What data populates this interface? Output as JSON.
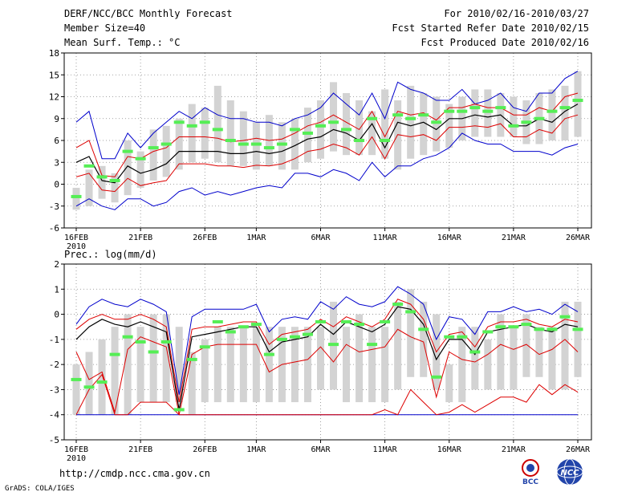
{
  "header": {
    "title": "DERF/NCC/BCC Monthly Forecast",
    "member_size": "Member Size=40",
    "variable1": "Mean Surf. Temp.: °C",
    "period": "For 2010/02/16-2010/03/27",
    "refer_date": "Fcst Started Refer Date 2010/02/15",
    "produced_date": "Fcst Produced Date 2010/02/16"
  },
  "footer": {
    "url": "http://cmdp.ncc.cma.gov.cn",
    "credit": "GrADS: COLA/IGES",
    "logo1_text": "BCC",
    "logo2_text": "NCC"
  },
  "colors": {
    "box": "#d3d3d3",
    "median": "#55ee55",
    "mean": "#000000",
    "inner": "#dd0000",
    "outer": "#0000cc",
    "grid": "#888888"
  },
  "chart_data": [
    {
      "type": "box-line",
      "title": "Mean Surf. Temp.: °C",
      "ylim": [
        -6,
        18
      ],
      "yticks": [
        -6,
        -3,
        0,
        3,
        6,
        9,
        12,
        15,
        18
      ],
      "xtick_labels": [
        "16FEB",
        "21FEB",
        "26FEB",
        "1MAR",
        "6MAR",
        "11MAR",
        "16MAR",
        "21MAR",
        "26MAR"
      ],
      "xtick_days": [
        0,
        5,
        10,
        14,
        19,
        24,
        29,
        34,
        39
      ],
      "year_label": "2010",
      "days": 40,
      "box_low": [
        -3.5,
        -3.0,
        -2.0,
        -2.5,
        -1.5,
        -0.5,
        0.5,
        1.0,
        2.0,
        3.0,
        3.5,
        3.0,
        2.5,
        2.5,
        2.0,
        2.5,
        2.0,
        2.0,
        3.0,
        3.5,
        4.5,
        4.0,
        4.0,
        4.0,
        3.5,
        2.0,
        3.5,
        4.0,
        4.5,
        5.0,
        6.0,
        6.5,
        6.5,
        6.5,
        6.5,
        5.5,
        5.5,
        6.0,
        6.0,
        6.5
      ],
      "box_high": [
        -0.5,
        2.0,
        2.5,
        1.5,
        6.0,
        4.5,
        7.5,
        8.0,
        9.0,
        11.0,
        10.5,
        13.5,
        11.5,
        10.0,
        8.5,
        9.5,
        8.5,
        9.0,
        10.5,
        11.5,
        14.0,
        12.5,
        11.5,
        10.0,
        13.0,
        11.5,
        13.5,
        12.5,
        12.0,
        11.0,
        12.0,
        13.0,
        13.0,
        12.5,
        12.0,
        11.5,
        12.5,
        13.0,
        13.5,
        15.5
      ],
      "median": [
        -1.7,
        2.5,
        1.0,
        0.5,
        4.5,
        3.5,
        5.0,
        5.5,
        8.5,
        8.0,
        8.5,
        7.5,
        6.0,
        5.5,
        5.5,
        5.0,
        5.5,
        7.5,
        7.0,
        8.0,
        8.5,
        7.5,
        6.0,
        9.0,
        6.0,
        9.5,
        9.0,
        9.5,
        8.5,
        10.0,
        10.0,
        10.5,
        10.0,
        10.5,
        8.0,
        8.5,
        9.0,
        10.0,
        10.5,
        11.5
      ],
      "mean": [
        3.0,
        3.8,
        0.5,
        0.2,
        2.5,
        1.5,
        2.0,
        2.8,
        4.5,
        4.5,
        4.5,
        4.5,
        4.2,
        4.2,
        4.5,
        4.2,
        4.5,
        5.3,
        6.2,
        6.5,
        7.5,
        7.0,
        6.0,
        8.3,
        5.0,
        8.5,
        8.0,
        8.5,
        7.5,
        9.0,
        9.0,
        9.5,
        9.2,
        9.5,
        8.0,
        8.0,
        9.0,
        8.5,
        10.0,
        11.0
      ],
      "inner_hi": [
        5.0,
        6.0,
        1.2,
        1.0,
        3.8,
        3.5,
        4.5,
        5.0,
        6.5,
        6.5,
        6.5,
        6.3,
        5.8,
        6.0,
        6.3,
        6.0,
        6.2,
        7.0,
        8.0,
        8.5,
        9.5,
        8.5,
        7.5,
        10.0,
        6.5,
        10.0,
        9.5,
        9.8,
        8.8,
        10.5,
        10.5,
        11.0,
        10.5,
        10.5,
        9.5,
        9.5,
        10.5,
        10.0,
        12.0,
        12.5
      ],
      "inner_lo": [
        1.0,
        1.5,
        -0.8,
        -1.0,
        0.8,
        -0.2,
        0.2,
        0.5,
        2.8,
        2.8,
        2.8,
        2.5,
        2.5,
        2.3,
        2.6,
        2.5,
        2.8,
        3.5,
        4.5,
        4.8,
        5.5,
        5.0,
        4.0,
        6.5,
        3.5,
        6.8,
        6.5,
        6.8,
        6.0,
        7.8,
        7.8,
        8.0,
        7.8,
        8.3,
        6.5,
        6.5,
        7.5,
        7.0,
        9.0,
        9.5
      ],
      "outer_hi": [
        8.5,
        10.0,
        3.5,
        3.5,
        7.0,
        5.0,
        7.0,
        8.5,
        10.0,
        9.0,
        10.5,
        9.5,
        9.0,
        9.0,
        8.5,
        8.5,
        8.0,
        9.0,
        9.5,
        10.5,
        12.5,
        11.0,
        9.5,
        12.5,
        9.0,
        14.0,
        13.0,
        12.5,
        11.5,
        11.5,
        13.0,
        11.0,
        11.5,
        12.5,
        10.5,
        10.0,
        12.5,
        12.5,
        14.5,
        15.5
      ],
      "outer_lo": [
        -3.0,
        -2.0,
        -3.0,
        -3.5,
        -2.0,
        -2.0,
        -3.0,
        -2.5,
        -1.0,
        -0.5,
        -1.5,
        -1.0,
        -1.5,
        -1.0,
        -0.5,
        -0.2,
        -0.5,
        1.5,
        1.5,
        1.0,
        2.0,
        1.5,
        0.5,
        3.0,
        1.0,
        2.5,
        2.5,
        3.5,
        4.0,
        5.0,
        7.0,
        6.0,
        5.5,
        5.5,
        4.5,
        4.5,
        4.5,
        4.0,
        5.0,
        5.5
      ]
    },
    {
      "type": "box-line",
      "title": "Prec.: log(mm/d)",
      "ylim": [
        -5,
        2
      ],
      "yticks": [
        -5,
        -4,
        -3,
        -2,
        -1,
        0,
        1,
        2
      ],
      "xtick_labels": [
        "16FEB",
        "21FEB",
        "26FEB",
        "1MAR",
        "6MAR",
        "11MAR",
        "16MAR",
        "21MAR",
        "26MAR"
      ],
      "xtick_days": [
        0,
        5,
        10,
        14,
        19,
        24,
        29,
        34,
        39
      ],
      "year_label": "2010",
      "days": 40,
      "box_low": [
        -4.0,
        -4.0,
        -4.0,
        -4.0,
        -4.0,
        -3.5,
        -3.5,
        -3.5,
        -3.5,
        -4.0,
        -3.5,
        -3.5,
        -3.5,
        -3.5,
        -3.5,
        -3.5,
        -3.5,
        -3.5,
        -3.5,
        -3.0,
        -3.0,
        -3.5,
        -3.5,
        -3.5,
        -3.5,
        -3.0,
        -2.5,
        -2.5,
        -3.0,
        -3.5,
        -3.5,
        -3.0,
        -3.0,
        -3.0,
        -3.0,
        -2.5,
        -2.5,
        -3.0,
        -3.0,
        -2.5
      ],
      "box_high": [
        -2.0,
        -1.5,
        -1.0,
        -0.5,
        0.0,
        -0.5,
        0.0,
        0.0,
        -0.5,
        -1.5,
        -1.0,
        -0.5,
        -0.5,
        -0.5,
        -0.5,
        -0.5,
        -0.5,
        -0.5,
        -0.5,
        -0.5,
        0.5,
        -0.5,
        0.0,
        -0.5,
        -0.5,
        0.5,
        1.0,
        0.5,
        0.0,
        -2.0,
        -0.5,
        -0.5,
        -1.0,
        0.0,
        -0.5,
        0.0,
        -0.5,
        -0.5,
        0.5,
        0.5
      ],
      "median": [
        -2.6,
        -2.9,
        -2.7,
        -1.6,
        -0.9,
        -1.1,
        -1.5,
        -1.1,
        -3.8,
        -1.8,
        -1.3,
        -0.3,
        -0.7,
        -0.5,
        -0.4,
        -1.6,
        -1.0,
        -0.9,
        -0.8,
        -0.3,
        -1.2,
        -0.3,
        -0.4,
        -1.2,
        -0.3,
        0.4,
        0.1,
        -0.6,
        -2.5,
        -0.9,
        -0.9,
        -1.5,
        -0.7,
        -0.5,
        -0.5,
        -0.4,
        -0.6,
        -0.6,
        -0.1,
        -0.6
      ],
      "mean": [
        -1.0,
        -0.5,
        -0.2,
        -0.4,
        -0.5,
        -0.3,
        -0.5,
        -0.7,
        -3.8,
        -0.9,
        -0.8,
        -0.7,
        -0.6,
        -0.5,
        -0.5,
        -1.5,
        -1.1,
        -1.0,
        -0.9,
        -0.4,
        -0.8,
        -0.3,
        -0.5,
        -0.7,
        -0.4,
        0.3,
        0.2,
        -0.4,
        -1.8,
        -1.0,
        -1.0,
        -1.6,
        -0.7,
        -0.6,
        -0.5,
        -0.4,
        -0.6,
        -0.7,
        -0.4,
        -0.5
      ],
      "inner_hi": [
        -0.6,
        -0.2,
        0.0,
        -0.2,
        -0.2,
        0.0,
        -0.2,
        -0.5,
        -3.5,
        -0.6,
        -0.5,
        -0.5,
        -0.4,
        -0.3,
        -0.3,
        -1.2,
        -0.8,
        -0.7,
        -0.6,
        -0.2,
        -0.5,
        -0.1,
        -0.3,
        -0.5,
        -0.2,
        0.6,
        0.4,
        -0.2,
        -1.5,
        -0.8,
        -0.7,
        -1.3,
        -0.5,
        -0.3,
        -0.3,
        -0.2,
        -0.4,
        -0.5,
        -0.2,
        -0.3
      ],
      "inner_lo": [
        -1.5,
        -2.6,
        -2.3,
        -3.9,
        -1.4,
        -0.9,
        -1.1,
        -1.3,
        -4.0,
        -1.6,
        -1.3,
        -1.2,
        -1.2,
        -1.2,
        -1.2,
        -2.3,
        -2.0,
        -1.9,
        -1.8,
        -1.3,
        -1.9,
        -1.2,
        -1.5,
        -1.4,
        -1.3,
        -0.6,
        -0.9,
        -1.1,
        -3.3,
        -1.5,
        -1.8,
        -1.9,
        -1.6,
        -1.2,
        -1.4,
        -1.2,
        -1.6,
        -1.4,
        -1.0,
        -1.5
      ],
      "outer_hi": [
        -0.4,
        0.3,
        0.6,
        0.4,
        0.3,
        0.6,
        0.4,
        0.1,
        -3.2,
        -0.1,
        0.2,
        0.2,
        0.2,
        0.2,
        0.4,
        -0.7,
        -0.2,
        -0.1,
        -0.2,
        0.5,
        0.2,
        0.7,
        0.4,
        0.3,
        0.5,
        1.1,
        0.8,
        0.4,
        -1.0,
        -0.1,
        -0.2,
        -0.8,
        0.1,
        0.1,
        0.3,
        0.1,
        0.2,
        0.0,
        0.4,
        0.1
      ],
      "outer_lo": [
        -4.0,
        -4.0,
        -4.0,
        -4.0,
        -4.0,
        -4.0,
        -4.0,
        -4.0,
        -4.0,
        -4.0,
        -4.0,
        -4.0,
        -4.0,
        -4.0,
        -4.0,
        -4.0,
        -4.0,
        -4.0,
        -4.0,
        -4.0,
        -4.0,
        -4.0,
        -4.0,
        -4.0,
        -4.0,
        -4.0,
        -4.0,
        -4.0,
        -4.0,
        -4.0,
        -4.0,
        -4.0,
        -4.0,
        -4.0,
        -4.0,
        -4.0,
        -4.0,
        -4.0,
        -4.0,
        -4.0
      ],
      "red_floor": [
        -4.0,
        -3.0,
        -2.4,
        -4.0,
        -4.0,
        -3.5,
        -3.5,
        -3.5,
        -4.0,
        -4.0,
        -4.0,
        -4.0,
        -4.0,
        -4.0,
        -4.0,
        -4.0,
        -4.0,
        -4.0,
        -4.0,
        -4.0,
        -4.0,
        -4.0,
        -4.0,
        -4.0,
        -3.8,
        -4.0,
        -3.0,
        -3.5,
        -4.0,
        -3.9,
        -3.6,
        -3.9,
        -3.6,
        -3.3,
        -3.3,
        -3.5,
        -2.8,
        -3.2,
        -2.8,
        -3.1
      ]
    }
  ]
}
